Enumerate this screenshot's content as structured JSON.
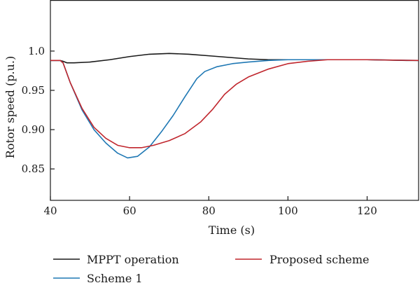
{
  "chart_data": {
    "type": "line",
    "title": "",
    "xlabel": "Time (s)",
    "ylabel": "Rotor speed (p.u.)",
    "xlim": [
      40,
      133
    ],
    "ylim": [
      0.81,
      1.065
    ],
    "xticks": [
      40,
      60,
      80,
      100,
      120
    ],
    "xtick_labels": [
      "40",
      "60",
      "80",
      "100",
      "120"
    ],
    "yticks": [
      0.85,
      0.9,
      0.95,
      1.0
    ],
    "ytick_labels": [
      "0.85",
      "0.90",
      "0.95",
      "1.0"
    ],
    "grid": false,
    "legend_position": "bottom",
    "series": [
      {
        "name": "MPPT operation",
        "color": "#1a1a1a",
        "x": [
          40,
          42.5,
          43.2,
          44.2,
          46,
          50,
          55,
          60,
          65,
          70,
          75,
          80,
          85,
          90,
          95,
          100,
          110,
          120,
          130,
          133
        ],
        "y": [
          0.988,
          0.988,
          0.987,
          0.985,
          0.985,
          0.986,
          0.989,
          0.993,
          0.996,
          0.997,
          0.996,
          0.994,
          0.992,
          0.99,
          0.989,
          0.989,
          0.989,
          0.989,
          0.988,
          0.988
        ]
      },
      {
        "name": "Scheme 1",
        "color": "#1f78b4",
        "x": [
          40,
          42.5,
          43.2,
          45,
          48,
          51,
          54,
          57,
          59.5,
          62,
          65,
          68,
          71,
          74,
          77,
          79,
          82,
          86,
          90,
          95,
          100,
          110,
          120,
          133
        ],
        "y": [
          0.988,
          0.988,
          0.985,
          0.96,
          0.925,
          0.9,
          0.883,
          0.87,
          0.864,
          0.866,
          0.878,
          0.897,
          0.918,
          0.942,
          0.965,
          0.974,
          0.98,
          0.984,
          0.986,
          0.988,
          0.989,
          0.989,
          0.989,
          0.988
        ]
      },
      {
        "name": "Proposed scheme",
        "color": "#c0262d",
        "x": [
          40,
          42.5,
          43.2,
          45,
          48,
          51,
          54,
          57,
          60,
          63,
          66,
          70,
          74,
          78,
          81,
          84,
          87,
          90,
          95,
          100,
          105,
          110,
          120,
          133
        ],
        "y": [
          0.988,
          0.988,
          0.985,
          0.96,
          0.927,
          0.903,
          0.889,
          0.88,
          0.877,
          0.877,
          0.88,
          0.886,
          0.895,
          0.91,
          0.926,
          0.945,
          0.958,
          0.967,
          0.977,
          0.984,
          0.987,
          0.989,
          0.989,
          0.988
        ]
      }
    ]
  }
}
